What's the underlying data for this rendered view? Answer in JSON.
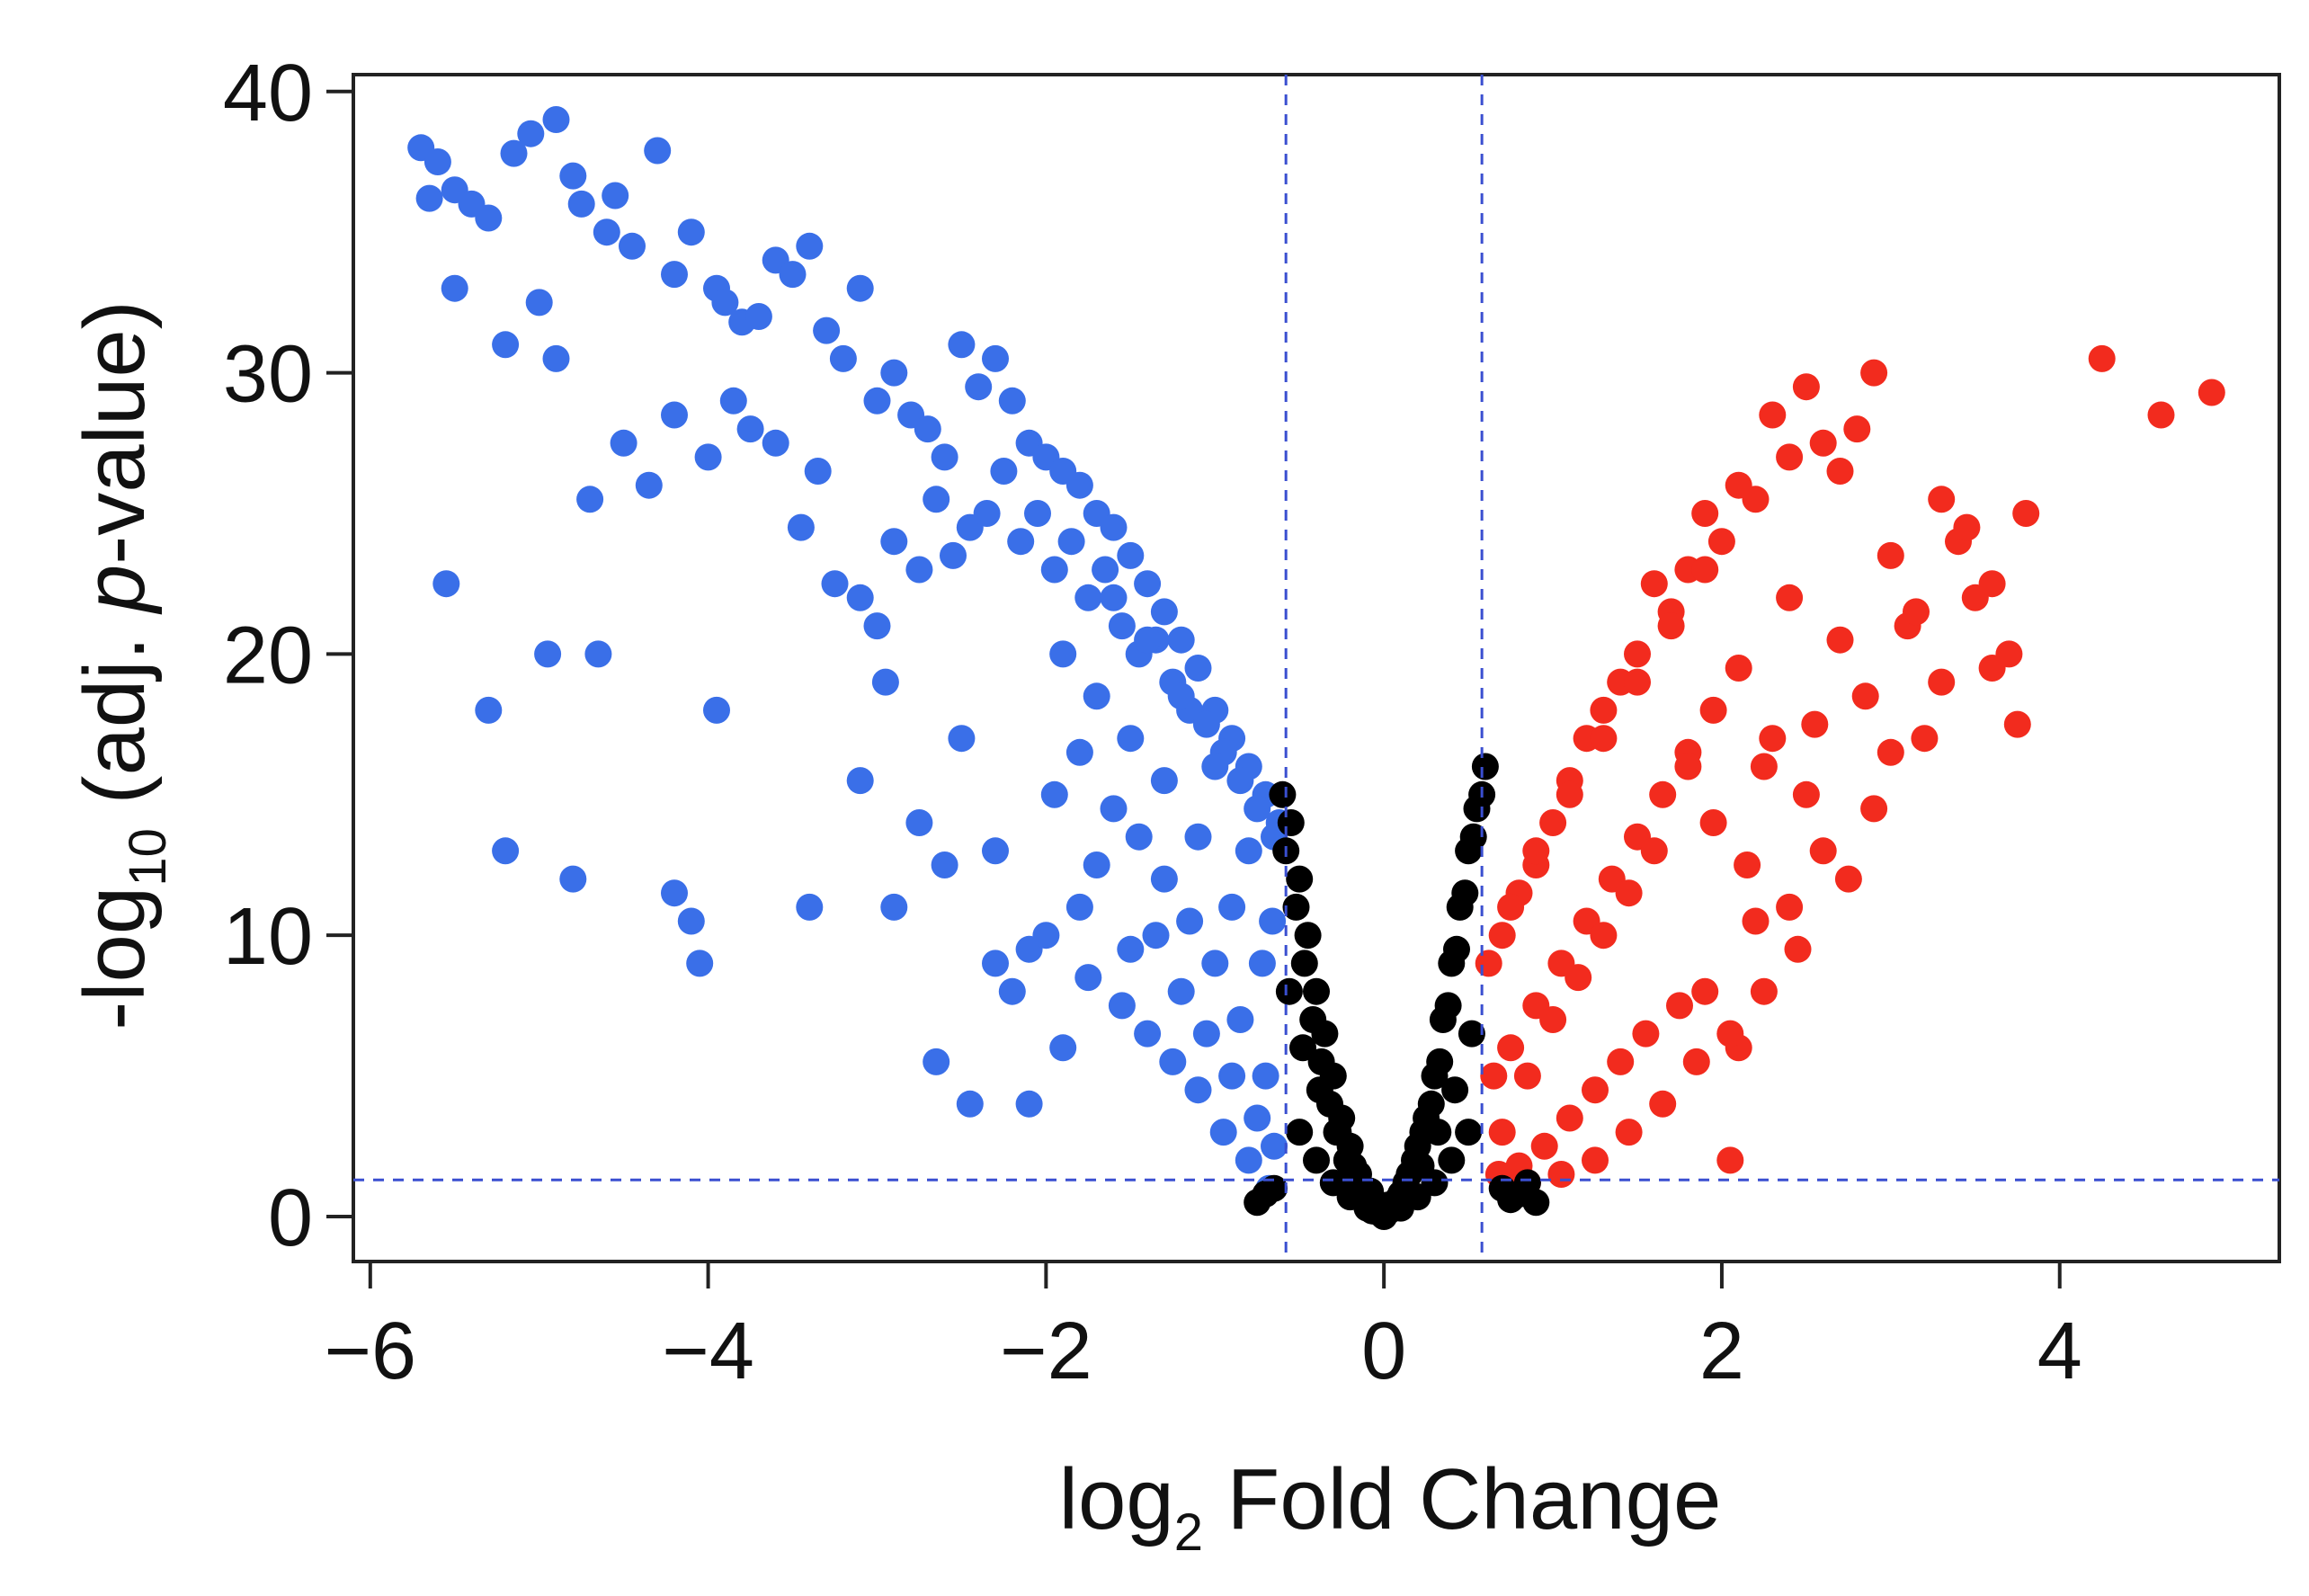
{
  "chart_data": {
    "type": "scatter",
    "title": "",
    "xlabel": {
      "prefix": "log",
      "subscript": "2",
      "suffix": " Fold Change"
    },
    "ylabel": {
      "prefix": "-log",
      "subscript": "10",
      "suffix": " (adj. ",
      "italic": "p",
      "end": "-value)"
    },
    "xlim": [
      -6.1,
      5.3
    ],
    "ylim": [
      -1.6,
      40.6
    ],
    "xticks": [
      -6,
      -4,
      -2,
      0,
      2,
      4
    ],
    "xtick_labels": [
      "−6",
      "−4",
      "−2",
      "0",
      "2",
      "4"
    ],
    "yticks": [
      0,
      10,
      20,
      30,
      40
    ],
    "ytick_labels": [
      "0",
      "10",
      "20",
      "30",
      "40"
    ],
    "grid": false,
    "legend": "none",
    "thresholds": {
      "fold_change": [
        -0.58,
        0.58
      ],
      "neg_log10_p": 1.3
    },
    "colors": {
      "down": "#3a6fe8",
      "up": "#f22b1e",
      "ns": "#000000",
      "threshold": "#3a4fd0"
    },
    "series": [
      {
        "group": "down",
        "x": [
          -5.7,
          -5.6,
          -5.5,
          -5.65,
          -5.4,
          -5.3,
          -5.15,
          -5.05,
          -4.9,
          -4.8,
          -4.75,
          -4.6,
          -4.55,
          -4.45,
          -4.3,
          -4.2,
          -4.1,
          -3.95,
          -3.9,
          -3.8,
          -3.7,
          -3.6,
          -3.5,
          -3.4,
          -3.3,
          -3.2,
          -3.1,
          -3.0,
          -2.9,
          -2.8,
          -2.7,
          -2.6,
          -2.5,
          -2.4,
          -2.3,
          -2.2,
          -2.1,
          -2.0,
          -1.9,
          -1.8,
          -1.7,
          -1.6,
          -1.5,
          -1.4,
          -1.3,
          -1.2,
          -1.1,
          -1.0,
          -0.9,
          -0.8,
          -0.7,
          -0.62,
          -5.5,
          -5.2,
          -5.0,
          -4.9,
          -4.7,
          -4.5,
          -4.35,
          -4.2,
          -4.0,
          -3.85,
          -3.75,
          -3.6,
          -3.45,
          -3.35,
          -3.25,
          -3.1,
          -3.0,
          -2.9,
          -2.75,
          -2.65,
          -2.55,
          -2.45,
          -2.35,
          -2.25,
          -2.15,
          -2.05,
          -1.95,
          -1.85,
          -1.75,
          -1.65,
          -1.55,
          -1.45,
          -1.35,
          -1.25,
          -1.15,
          -1.05,
          -0.95,
          -0.85,
          -0.75,
          -0.65,
          -5.55,
          -5.3,
          -5.2,
          -4.95,
          -4.8,
          -4.65,
          -4.2,
          -4.1,
          -4.05,
          -3.95,
          -3.4,
          -3.1,
          -2.95,
          -2.75,
          -2.65,
          -2.5,
          -2.3,
          -2.1,
          -1.95,
          -1.8,
          -1.6,
          -1.45,
          -1.3,
          -1.15,
          -1.0,
          -0.85,
          -0.7,
          -2.9,
          -2.6,
          -2.2,
          -2.0,
          -1.8,
          -1.7,
          -1.5,
          -1.35,
          -1.2,
          -1.05,
          -0.9,
          -0.75,
          -0.65,
          -2.45,
          -2.3,
          -2.1,
          -1.9,
          -1.75,
          -1.55,
          -1.4,
          -1.25,
          -1.1,
          -0.95,
          -0.8,
          -0.68,
          -1.9,
          -1.7,
          -1.5,
          -1.3,
          -1.1,
          -0.9,
          -0.72,
          -1.6,
          -1.4,
          -1.2,
          -1.0,
          -0.8,
          -0.66
        ],
        "y": [
          38.0,
          37.5,
          36.5,
          36.2,
          36.0,
          35.5,
          37.8,
          38.5,
          39.0,
          37.0,
          36.0,
          35.0,
          36.3,
          34.5,
          37.9,
          33.5,
          35.0,
          33.0,
          32.5,
          31.8,
          32.0,
          34.0,
          33.5,
          34.5,
          31.5,
          30.5,
          33.0,
          29.0,
          30.0,
          28.5,
          28.0,
          27.0,
          31.0,
          29.5,
          30.5,
          29.0,
          27.5,
          27.0,
          26.5,
          26.0,
          25.0,
          24.5,
          23.5,
          22.5,
          21.5,
          20.5,
          19.5,
          18.0,
          17.0,
          16.0,
          15.0,
          14.0,
          33.0,
          31.0,
          32.5,
          30.5,
          25.5,
          27.5,
          26.0,
          28.5,
          27.0,
          29.0,
          28.0,
          27.5,
          24.5,
          26.5,
          22.5,
          22.0,
          21.0,
          24.0,
          23.0,
          25.5,
          23.5,
          24.5,
          25.0,
          26.5,
          24.0,
          25.0,
          23.0,
          24.0,
          22.0,
          23.0,
          21.0,
          20.0,
          20.5,
          19.0,
          18.0,
          17.5,
          16.5,
          15.5,
          14.5,
          13.5,
          22.5,
          18.0,
          13.0,
          20.0,
          12.0,
          20.0,
          11.5,
          10.5,
          9.0,
          18.0,
          11.0,
          15.5,
          19.0,
          14.0,
          5.5,
          17.0,
          13.0,
          9.5,
          15.0,
          16.5,
          14.5,
          13.5,
          12.0,
          10.5,
          9.0,
          7.0,
          5.0,
          11.0,
          12.5,
          8.0,
          10.0,
          11.0,
          12.5,
          9.5,
          10.0,
          8.0,
          6.5,
          5.0,
          3.5,
          2.5,
          4.0,
          9.0,
          4.0,
          6.0,
          8.5,
          7.5,
          6.5,
          5.5,
          4.5,
          3.0,
          2.0,
          1.0,
          20.0,
          18.5,
          17.0,
          15.5,
          13.5,
          11.0,
          9.0,
          22.0,
          20.5,
          18.5,
          16.0,
          13.0,
          10.5
        ]
      },
      {
        "group": "up",
        "x": [
          4.9,
          4.6,
          4.25,
          3.8,
          3.7,
          3.6,
          3.5,
          3.4,
          3.3,
          3.2,
          3.1,
          3.0,
          2.9,
          2.8,
          2.7,
          2.6,
          2.5,
          2.4,
          2.3,
          2.2,
          2.1,
          2.0,
          1.9,
          1.8,
          1.7,
          1.6,
          1.5,
          1.4,
          1.3,
          1.2,
          1.1,
          1.0,
          0.9,
          0.8,
          0.7,
          0.62,
          3.75,
          3.6,
          3.45,
          3.3,
          3.15,
          3.0,
          2.85,
          2.7,
          2.55,
          2.4,
          2.25,
          2.1,
          1.95,
          1.8,
          1.65,
          1.5,
          1.35,
          1.2,
          1.05,
          0.9,
          0.75,
          0.65,
          2.9,
          2.6,
          2.4,
          2.2,
          2.1,
          2.05,
          1.9,
          1.75,
          1.55,
          1.4,
          1.25,
          1.1,
          0.95,
          0.8,
          0.68,
          2.75,
          2.5,
          2.3,
          2.15,
          1.95,
          1.8,
          1.6,
          1.45,
          1.3,
          1.15,
          1.0,
          0.85,
          0.7,
          2.45,
          2.25,
          2.05,
          1.85,
          1.65,
          1.45,
          1.25,
          1.05,
          0.85,
          0.72,
          1.9,
          1.7,
          1.5,
          1.3,
          1.1,
          0.9,
          0.75
        ],
        "y": [
          29.3,
          28.5,
          30.5,
          25.0,
          20.0,
          19.5,
          22.0,
          24.0,
          25.5,
          17.0,
          21.0,
          23.5,
          30.0,
          28.0,
          26.5,
          27.5,
          29.5,
          27.0,
          28.5,
          25.5,
          26.0,
          24.0,
          25.0,
          23.0,
          21.5,
          22.5,
          20.0,
          19.0,
          18.0,
          17.0,
          15.5,
          14.0,
          12.5,
          11.5,
          10.0,
          9.0,
          17.5,
          22.5,
          24.5,
          19.0,
          21.5,
          16.5,
          18.5,
          20.5,
          17.5,
          22.0,
          16.0,
          19.5,
          18.0,
          16.5,
          15.0,
          13.5,
          12.0,
          10.5,
          9.0,
          7.5,
          6.0,
          5.0,
          14.5,
          13.0,
          11.0,
          10.5,
          6.0,
          2.0,
          8.0,
          7.5,
          6.5,
          5.5,
          4.5,
          3.5,
          2.5,
          1.8,
          1.5,
          12.0,
          15.0,
          17.0,
          12.5,
          14.0,
          16.0,
          13.0,
          11.5,
          10.0,
          8.5,
          7.0,
          5.0,
          3.0,
          9.5,
          8.0,
          6.5,
          5.5,
          4.0,
          3.0,
          2.0,
          1.5,
          1.2,
          1.0,
          23.0,
          21.0,
          19.0,
          17.0,
          15.0,
          13.0,
          11.0
        ]
      },
      {
        "group": "ns",
        "x": [
          -0.6,
          -0.55,
          -0.5,
          -0.45,
          -0.4,
          -0.35,
          -0.3,
          -0.25,
          -0.2,
          -0.15,
          -0.1,
          -0.05,
          0.0,
          0.05,
          0.1,
          0.15,
          0.2,
          0.25,
          0.3,
          0.35,
          0.4,
          0.45,
          0.5,
          0.55,
          0.6,
          -0.58,
          -0.52,
          -0.47,
          -0.42,
          -0.37,
          -0.32,
          -0.27,
          -0.22,
          -0.17,
          -0.12,
          -0.07,
          -0.02,
          0.03,
          0.08,
          0.13,
          0.18,
          0.23,
          0.28,
          0.33,
          0.38,
          0.43,
          0.48,
          0.53,
          0.58,
          -0.56,
          -0.48,
          -0.38,
          -0.28,
          -0.18,
          -0.08,
          0.02,
          0.12,
          0.22,
          0.32,
          0.42,
          0.52,
          -0.5,
          -0.4,
          -0.3,
          -0.2,
          -0.1,
          0.0,
          0.1,
          0.2,
          0.3,
          0.4,
          0.5,
          -0.7,
          -0.65,
          0.7,
          0.8,
          0.9,
          -0.75,
          0.75,
          0.85
        ],
        "y": [
          15.0,
          14.0,
          12.0,
          10.0,
          8.0,
          6.5,
          5.0,
          3.5,
          2.5,
          1.5,
          0.8,
          0.3,
          0.1,
          0.3,
          0.8,
          1.5,
          2.5,
          3.5,
          5.0,
          7.0,
          9.0,
          11.0,
          13.0,
          14.5,
          16.0,
          13.0,
          11.0,
          9.0,
          7.0,
          5.5,
          4.0,
          3.0,
          2.0,
          1.2,
          0.6,
          0.2,
          0.1,
          0.2,
          0.6,
          1.2,
          2.0,
          3.0,
          4.0,
          5.5,
          7.5,
          9.5,
          11.5,
          13.5,
          15.0,
          8.0,
          6.0,
          4.5,
          3.0,
          1.8,
          0.9,
          0.4,
          0.9,
          1.8,
          3.0,
          4.5,
          6.5,
          3.0,
          2.0,
          1.2,
          0.7,
          0.3,
          0.0,
          0.3,
          0.7,
          1.2,
          2.0,
          3.0,
          0.8,
          1.0,
          1.0,
          0.8,
          0.5,
          0.5,
          0.6,
          1.2
        ]
      }
    ]
  }
}
